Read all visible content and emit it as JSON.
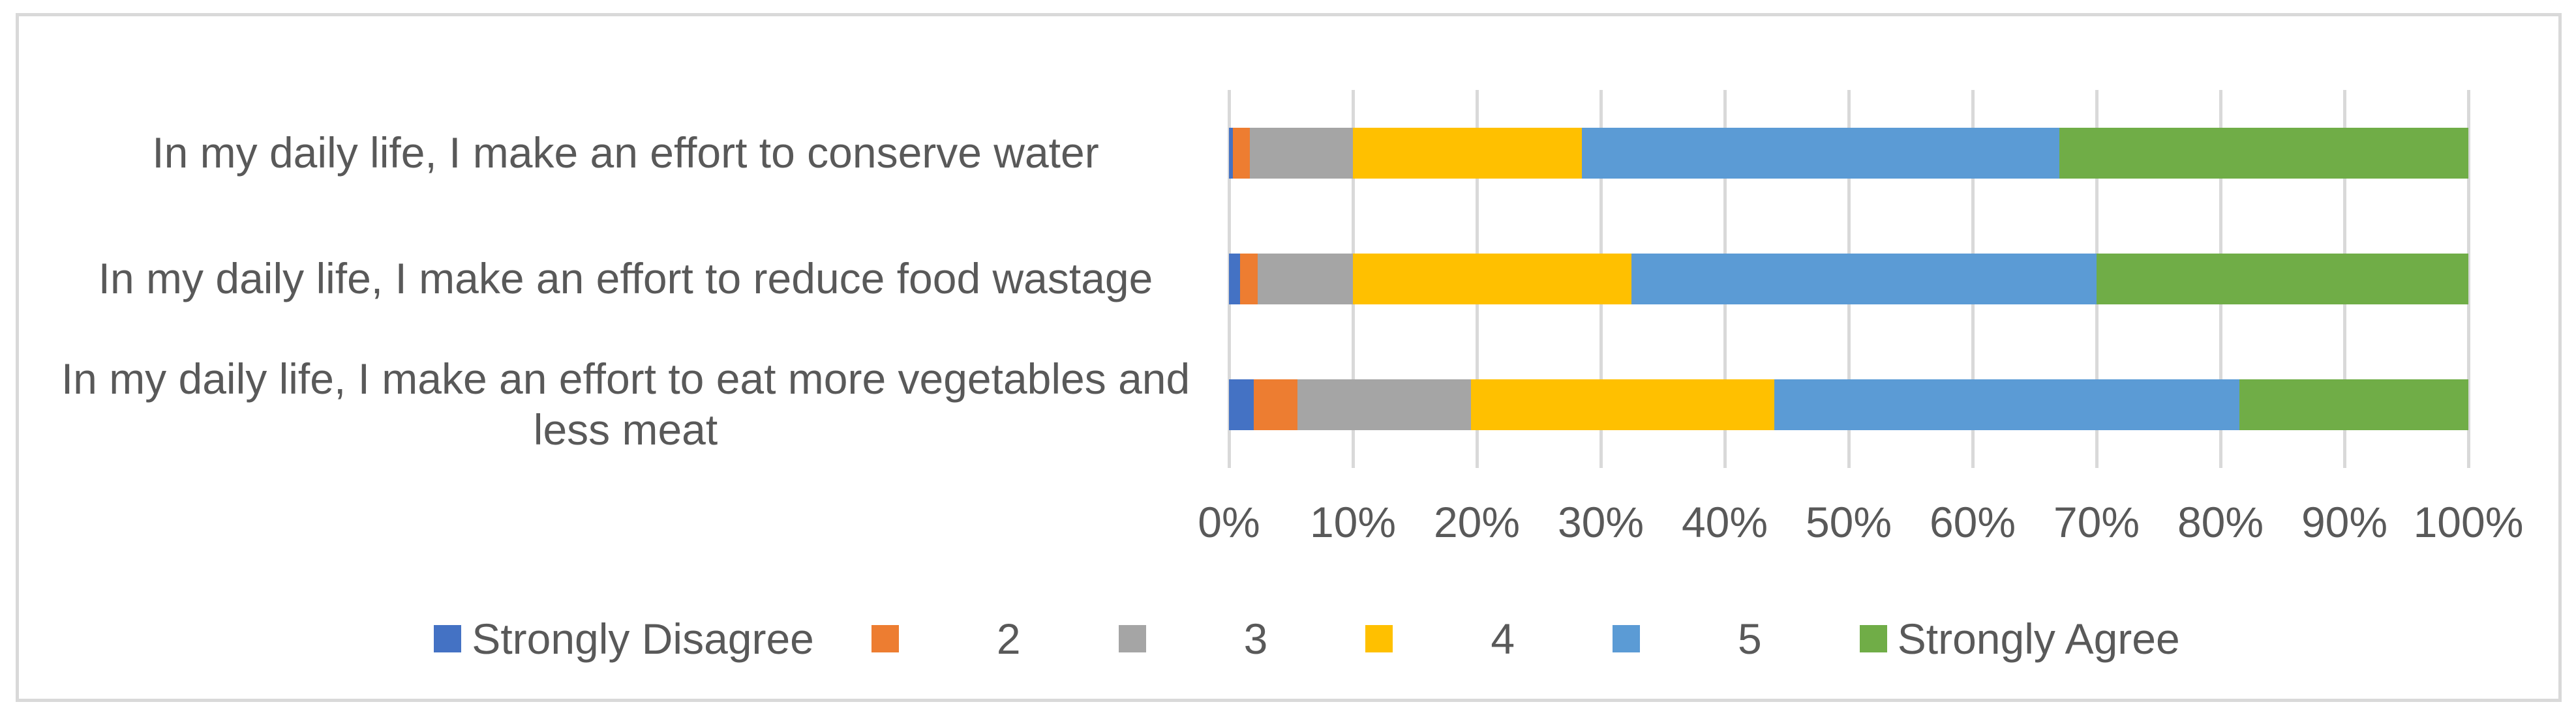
{
  "chart_data": {
    "type": "bar",
    "subtype": "stacked-100",
    "orientation": "horizontal",
    "title": "",
    "xlabel": "",
    "ylabel": "",
    "grid": true,
    "categories": [
      "In my daily life, I make an effort to conserve water",
      "In my daily life, I make an effort to reduce food wastage",
      "In my daily life, I make an effort to eat more vegetables and less meat"
    ],
    "series": [
      {
        "name": "Strongly Disagree",
        "color": "#4472C4",
        "values": [
          0.3,
          0.9,
          2.0
        ]
      },
      {
        "name": "2",
        "color": "#ED7D31",
        "values": [
          1.4,
          1.4,
          3.5
        ]
      },
      {
        "name": "3",
        "color": "#A5A5A5",
        "values": [
          8.3,
          7.7,
          14.0
        ]
      },
      {
        "name": "4",
        "color": "#FFC000",
        "values": [
          18.5,
          22.5,
          24.5
        ]
      },
      {
        "name": "5",
        "color": "#5B9BD5",
        "values": [
          38.5,
          37.5,
          37.5
        ]
      },
      {
        "name": "Strongly Agree",
        "color": "#70AD47",
        "values": [
          33.0,
          30.0,
          18.5
        ]
      }
    ],
    "x_axis": {
      "min": 0,
      "max": 100,
      "tick_step": 10,
      "tick_labels": [
        "0%",
        "10%",
        "20%",
        "30%",
        "40%",
        "50%",
        "60%",
        "70%",
        "80%",
        "90%",
        "100%"
      ]
    },
    "legend": {
      "position": "bottom",
      "entries": [
        "Strongly Disagree",
        "2",
        "3",
        "4",
        "5",
        "Strongly Agree"
      ]
    },
    "colors": {
      "gridline": "#D9D9D9",
      "frame_border": "#D9D9D9",
      "text": "#595959",
      "background": "#FFFFFF"
    }
  }
}
